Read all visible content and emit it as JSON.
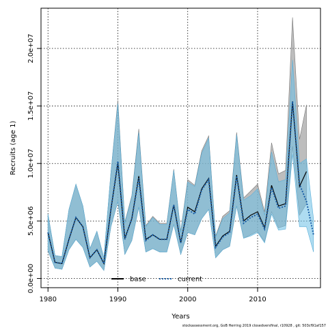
{
  "chart_data": {
    "type": "area",
    "title": "",
    "xlabel": "Years",
    "ylabel": "Recruits (age 1)",
    "xlim": [
      1979,
      2019
    ],
    "ylim": [
      -800000,
      23500000
    ],
    "xticks": [
      1980,
      1990,
      2000,
      2010
    ],
    "yticks": [
      0,
      5000000,
      10000000,
      15000000,
      20000000
    ],
    "ytick_labels": [
      "0.0e+00",
      "5.0e+06",
      "1.0e+07",
      "1.5e+07",
      "2.0e+07"
    ],
    "grid": true,
    "legend_position": "bottom-center",
    "x": [
      1980,
      1981,
      1982,
      1983,
      1984,
      1985,
      1986,
      1987,
      1988,
      1989,
      1990,
      1991,
      1992,
      1993,
      1994,
      1995,
      1996,
      1997,
      1998,
      1999,
      2000,
      2001,
      2002,
      2003,
      2004,
      2005,
      2006,
      2007,
      2008,
      2009,
      2010,
      2011,
      2012,
      2013,
      2014,
      2015,
      2016,
      2017,
      2018
    ],
    "series": [
      {
        "name": "base",
        "color": "#000000",
        "band_color": "#999999",
        "line_style": "solid",
        "values": [
          4000000,
          1400000,
          1300000,
          3400000,
          5300000,
          4500000,
          1800000,
          2500000,
          1300000,
          6000000,
          10000000,
          3500000,
          5200000,
          8900000,
          3400000,
          3800000,
          3400000,
          3400000,
          6400000,
          3100000,
          6200000,
          5800000,
          7800000,
          8700000,
          2800000,
          3700000,
          4100000,
          9000000,
          5000000,
          5500000,
          5800000,
          4400000,
          8100000,
          6300000,
          6500000,
          15400000,
          8000000,
          9300000,
          null
        ],
        "lower": [
          2400000,
          900000,
          800000,
          2500000,
          3400000,
          2700000,
          1000000,
          1500000,
          700000,
          4500000,
          6700000,
          2100000,
          3300000,
          6200000,
          2300000,
          2600000,
          2300000,
          2300000,
          4700000,
          2100000,
          4000000,
          3800000,
          5200000,
          6000000,
          1800000,
          2500000,
          2800000,
          6300000,
          3500000,
          3800000,
          4100000,
          3200000,
          5800000,
          4400000,
          4600000,
          11500000,
          5500000,
          6500000,
          null
        ],
        "upper": [
          5600000,
          2000000,
          1900000,
          6000000,
          8200000,
          6300000,
          2600000,
          4100000,
          1800000,
          9200000,
          15500000,
          4900000,
          7200000,
          13000000,
          4600000,
          5400000,
          4800000,
          4800000,
          9500000,
          4100000,
          8600000,
          8100000,
          11100000,
          12400000,
          3700000,
          5400000,
          5900000,
          12700000,
          7000000,
          7600000,
          8200000,
          5800000,
          11800000,
          9100000,
          9400000,
          22700000,
          12100000,
          15100000,
          null
        ]
      },
      {
        "name": "current",
        "color": "#1a5fa8",
        "band_color": "#6bbfe6",
        "line_style": "dotted",
        "values": [
          4000000,
          1400000,
          1300000,
          3400000,
          5300000,
          4500000,
          1800000,
          2500000,
          1300000,
          6000000,
          10200000,
          3400000,
          5200000,
          8700000,
          3300000,
          3800000,
          3400000,
          3400000,
          6400000,
          3100000,
          6000000,
          5600000,
          7700000,
          8600000,
          2700000,
          3600000,
          4000000,
          8900000,
          4800000,
          5300000,
          5600000,
          4300000,
          7900000,
          6100000,
          6300000,
          15400000,
          8200000,
          6700000,
          3800000
        ],
        "lower": [
          2400000,
          900000,
          800000,
          2500000,
          3400000,
          2700000,
          1000000,
          1500000,
          700000,
          4500000,
          6700000,
          2100000,
          3300000,
          6200000,
          2300000,
          2600000,
          2300000,
          2300000,
          4700000,
          2100000,
          4000000,
          3800000,
          5200000,
          6000000,
          1800000,
          2500000,
          2800000,
          6300000,
          3500000,
          3700000,
          4000000,
          3100000,
          5600000,
          4200000,
          4300000,
          10800000,
          4500000,
          4500000,
          2300000
        ],
        "upper": [
          5600000,
          2000000,
          1900000,
          6000000,
          8200000,
          6300000,
          2600000,
          4100000,
          1800000,
          9200000,
          15200000,
          4800000,
          7100000,
          12700000,
          4500000,
          5300000,
          4700000,
          4700000,
          9400000,
          4000000,
          8400000,
          8000000,
          10900000,
          12200000,
          3600000,
          5200000,
          5700000,
          12500000,
          6800000,
          7200000,
          7800000,
          5500000,
          11000000,
          8400000,
          8600000,
          19000000,
          10000000,
          10400000,
          5200000
        ]
      }
    ]
  },
  "footer": "stockassessment.org, GoB Herring 2019 closedversfinal, r10928 , git: 503cf91af157"
}
